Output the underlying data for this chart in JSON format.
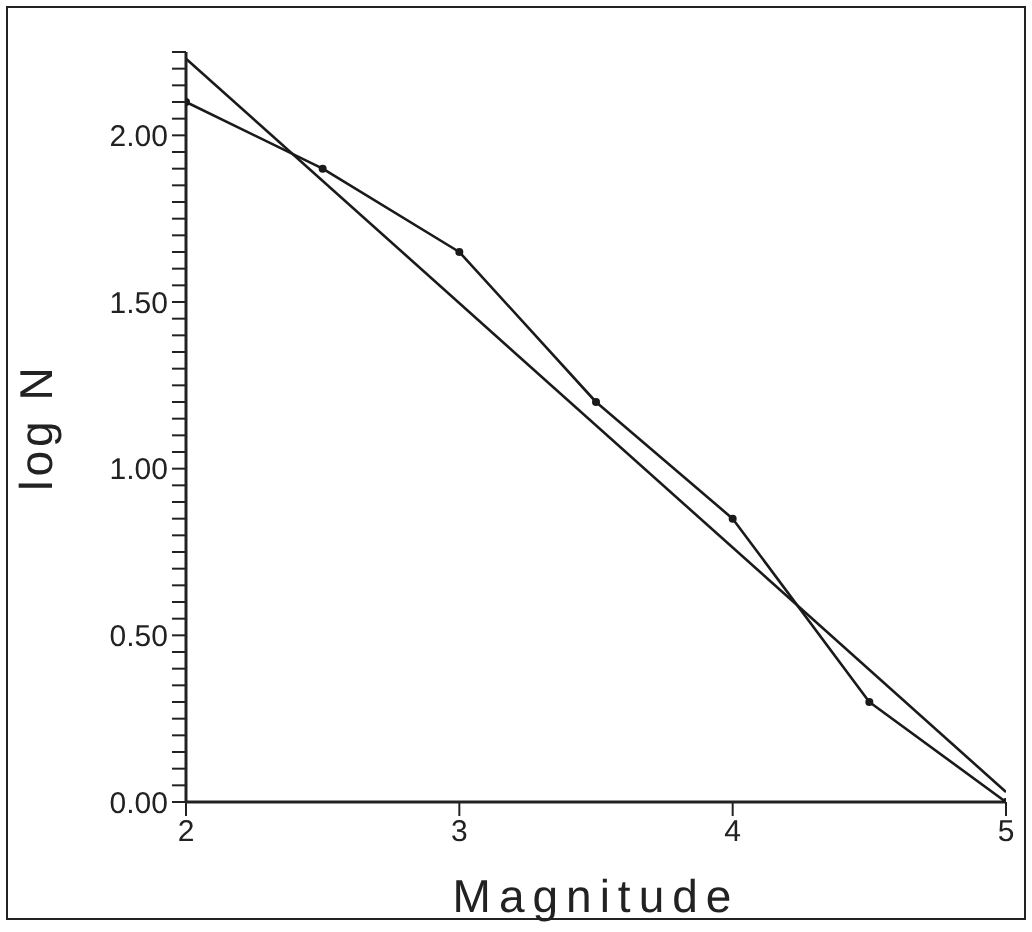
{
  "chart_data": {
    "type": "line",
    "xlabel": "Magnitude",
    "ylabel": "log N",
    "xlim": [
      2,
      5
    ],
    "xticks": [
      2,
      3,
      4,
      5
    ],
    "ylim": [
      0,
      2.25
    ],
    "yticks": [
      {
        "value": 0,
        "label": "0.00"
      },
      {
        "value": 0.05,
        "label": null
      },
      {
        "value": 0.1,
        "label": null
      },
      {
        "value": 0.15,
        "label": null
      },
      {
        "value": 0.2,
        "label": null
      },
      {
        "value": 0.25,
        "label": null
      },
      {
        "value": 0.3,
        "label": null
      },
      {
        "value": 0.35,
        "label": null
      },
      {
        "value": 0.4,
        "label": null
      },
      {
        "value": 0.45,
        "label": null
      },
      {
        "value": 0.5,
        "label": "0.50"
      },
      {
        "value": 0.55,
        "label": null
      },
      {
        "value": 0.6,
        "label": null
      },
      {
        "value": 0.65,
        "label": null
      },
      {
        "value": 0.7,
        "label": null
      },
      {
        "value": 0.75,
        "label": null
      },
      {
        "value": 0.8,
        "label": null
      },
      {
        "value": 0.85,
        "label": null
      },
      {
        "value": 0.9,
        "label": null
      },
      {
        "value": 0.95,
        "label": null
      },
      {
        "value": 1,
        "label": "1.00"
      },
      {
        "value": 1.05,
        "label": null
      },
      {
        "value": 1.1,
        "label": null
      },
      {
        "value": 1.15,
        "label": null
      },
      {
        "value": 1.2,
        "label": null
      },
      {
        "value": 1.25,
        "label": null
      },
      {
        "value": 1.3,
        "label": null
      },
      {
        "value": 1.35,
        "label": null
      },
      {
        "value": 1.4,
        "label": null
      },
      {
        "value": 1.45,
        "label": null
      },
      {
        "value": 1.5,
        "label": "1.50"
      },
      {
        "value": 1.55,
        "label": null
      },
      {
        "value": 1.6,
        "label": null
      },
      {
        "value": 1.65,
        "label": null
      },
      {
        "value": 1.7,
        "label": null
      },
      {
        "value": 1.75,
        "label": null
      },
      {
        "value": 1.8,
        "label": null
      },
      {
        "value": 1.85,
        "label": null
      },
      {
        "value": 1.9,
        "label": null
      },
      {
        "value": 1.95,
        "label": null
      },
      {
        "value": 2,
        "label": "2.00"
      },
      {
        "value": 2.05,
        "label": null
      },
      {
        "value": 2.1,
        "label": null
      },
      {
        "value": 2.15,
        "label": null
      },
      {
        "value": 2.2,
        "label": null
      },
      {
        "value": 2.25,
        "label": null
      }
    ],
    "grid": false,
    "series": [
      {
        "color": "#1a1a1a",
        "marker": "circle",
        "x": [
          2,
          2.5,
          3,
          3.5,
          4,
          4.5,
          5
        ],
        "values": [
          2.1,
          1.9,
          1.65,
          1.2,
          0.85,
          0.3,
          0
        ]
      },
      {
        "color": "#1a1a1a",
        "marker": "none",
        "x": [
          2,
          5
        ],
        "values": [
          2.23,
          0.03
        ]
      }
    ]
  }
}
